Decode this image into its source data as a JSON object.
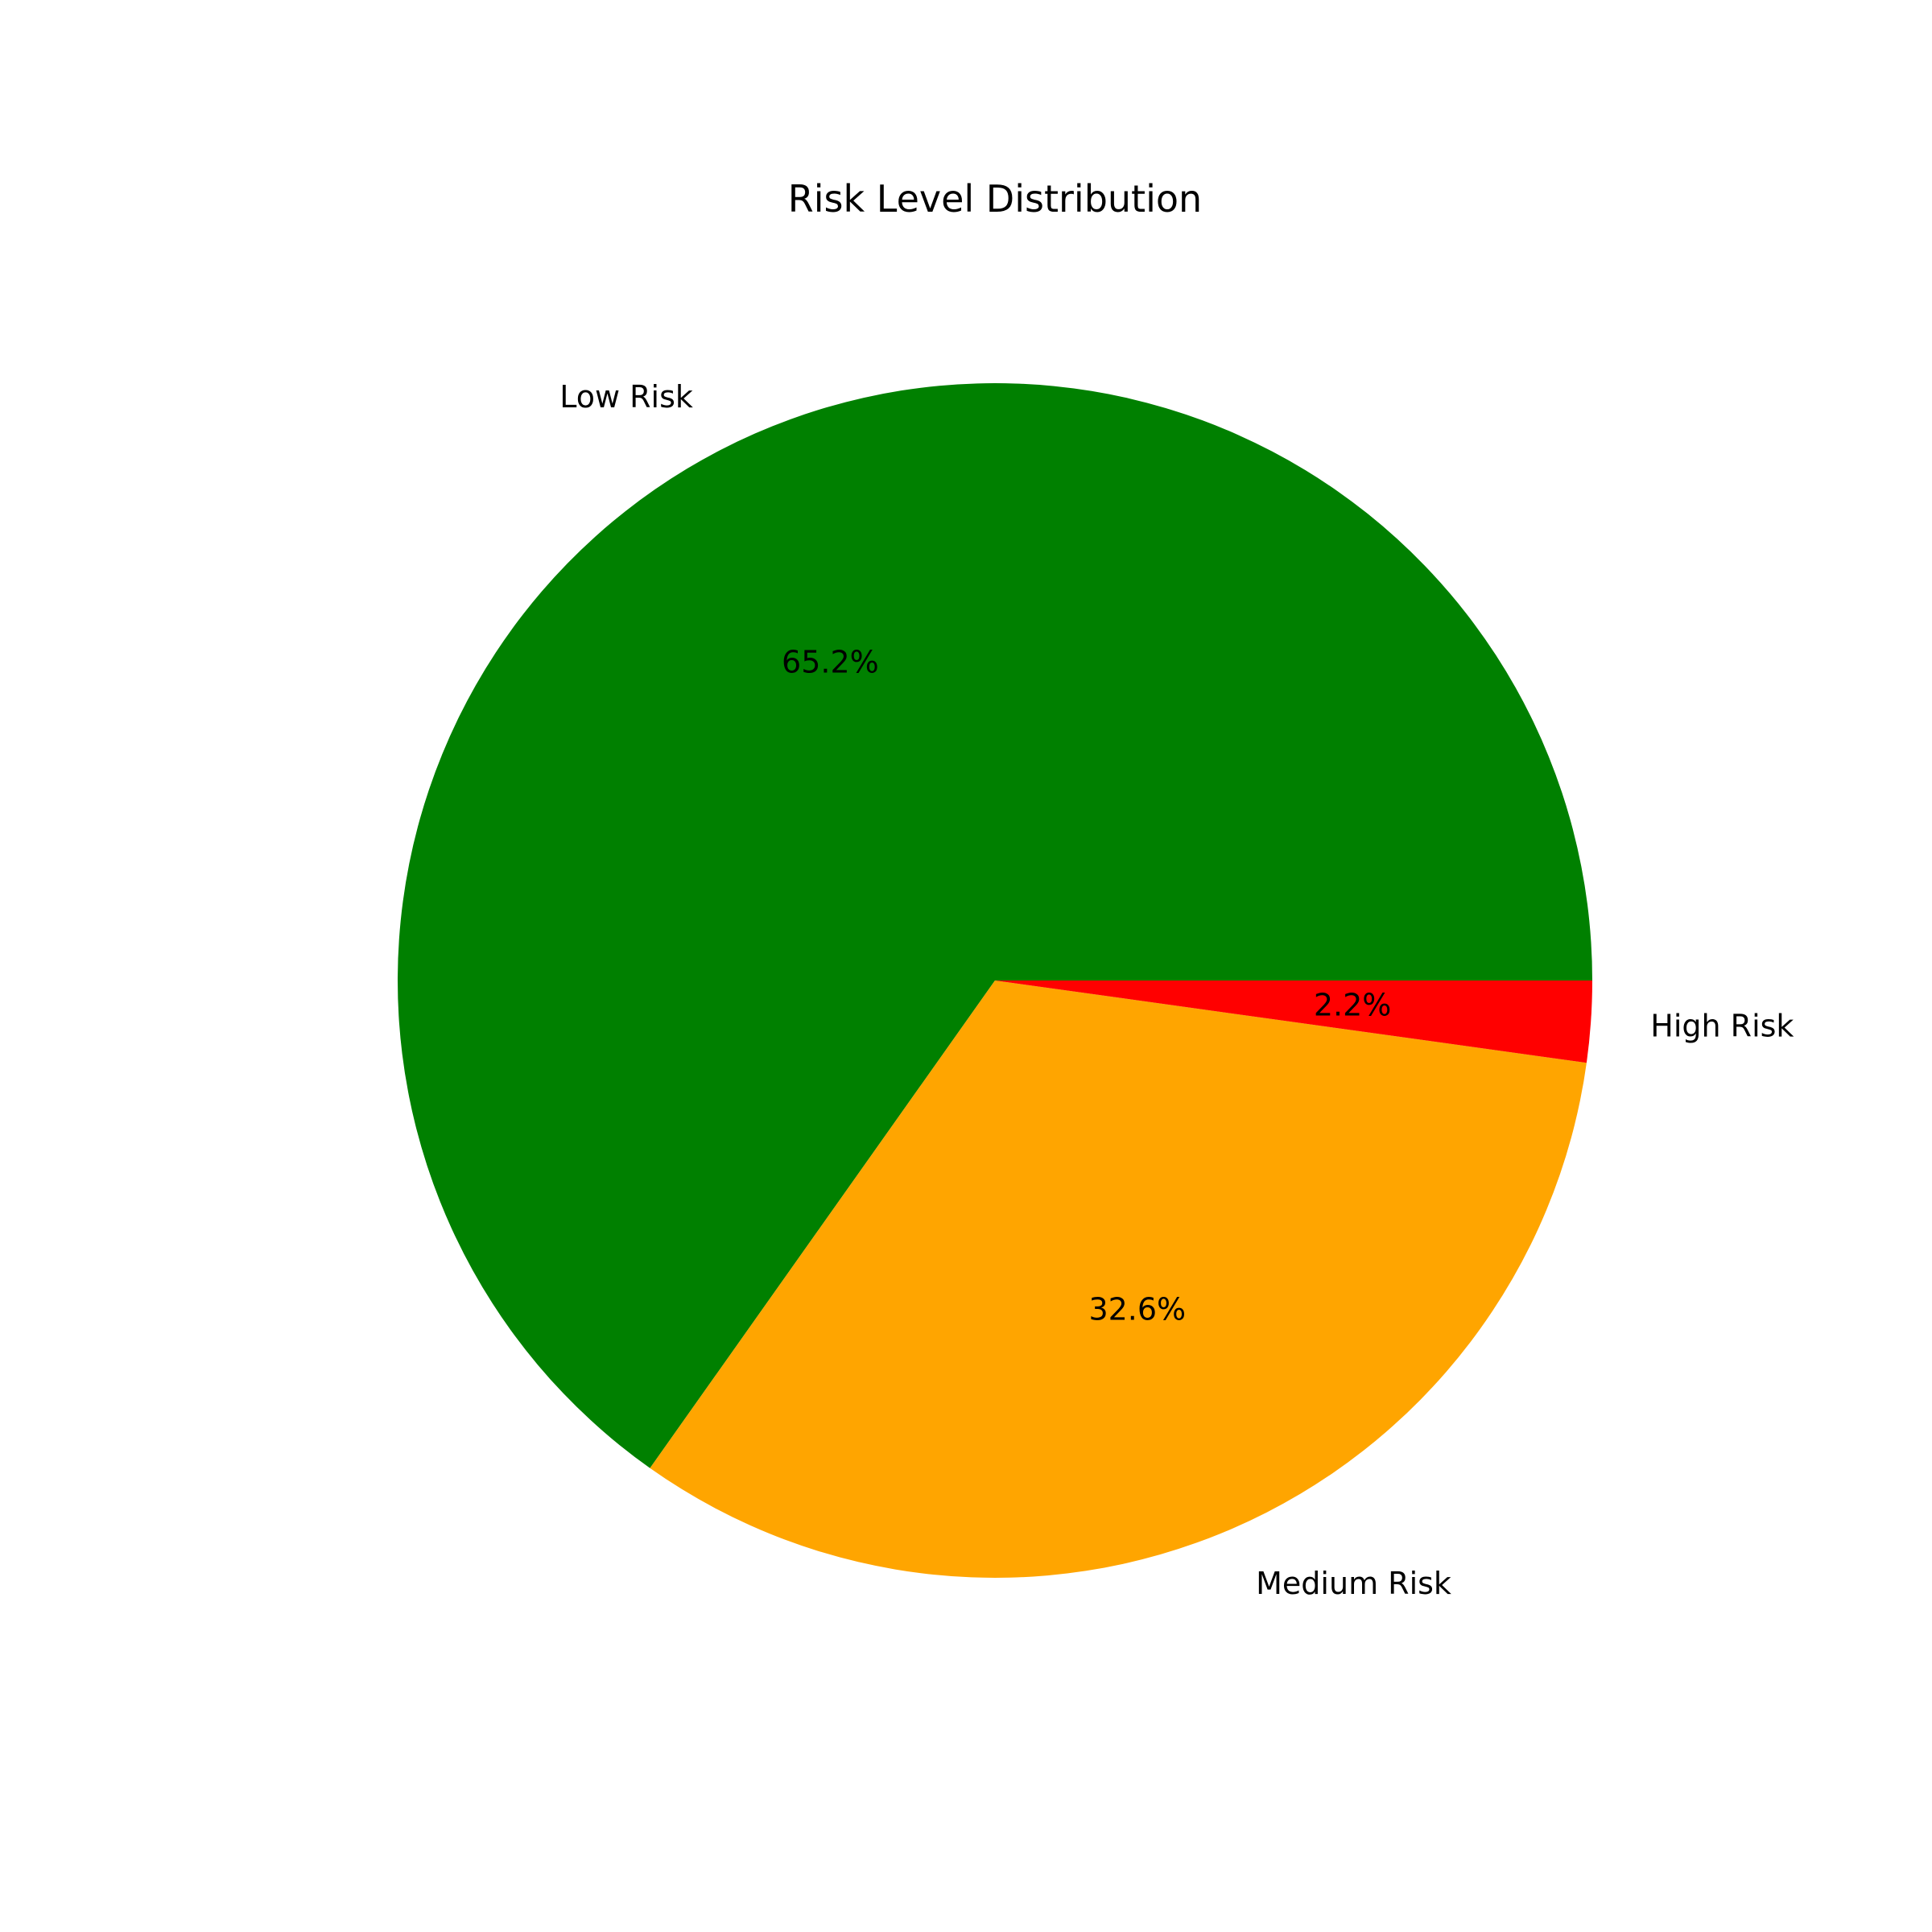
{
  "chart_data": {
    "type": "pie",
    "title": "Risk Level Distribution",
    "start_angle_deg": 0,
    "direction": "counterclockwise",
    "slices": [
      {
        "label": "Low Risk",
        "value": 65.2,
        "pct_text": "65.2%",
        "color": "#008000"
      },
      {
        "label": "Medium Risk",
        "value": 32.6,
        "pct_text": "32.6%",
        "color": "#FFA500"
      },
      {
        "label": "High Risk",
        "value": 2.2,
        "pct_text": "2.2%",
        "color": "#FF0000"
      }
    ]
  }
}
